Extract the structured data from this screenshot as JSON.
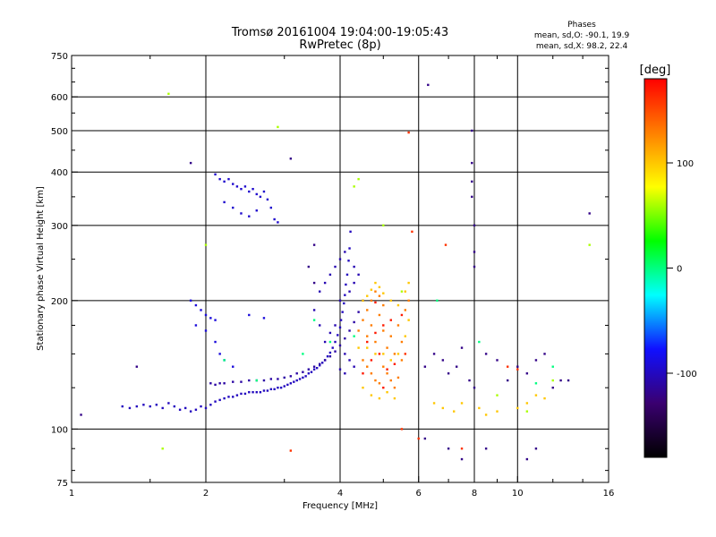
{
  "chart_data": {
    "type": "scatter",
    "title": "Tromsø 20161004 19:04:00-19:05:43",
    "subtitle": "RwPretec (8p)",
    "stats": {
      "heading": "Phases",
      "line_o": "mean, sd,O: -90.1, 19.9",
      "line_x": "mean, sd,X: 98.2, 22.4"
    },
    "xlabel": "Frequency [MHz]",
    "ylabel": "Stationary phase Virtual Height [km]",
    "x_scale": "log",
    "y_scale": "log",
    "xlim": [
      1,
      16
    ],
    "ylim": [
      75,
      750
    ],
    "x_ticks": [
      1,
      2,
      4,
      6,
      8,
      10,
      16
    ],
    "x_tick_labels": [
      "1",
      "2",
      "4",
      "6",
      "8",
      "10",
      "16"
    ],
    "y_ticks": [
      75,
      100,
      200,
      300,
      400,
      500,
      600,
      750
    ],
    "y_tick_labels": [
      "75",
      "100",
      "200",
      "300",
      "400",
      "500",
      "600",
      "750"
    ],
    "x_minor_ticks": [
      1.5,
      3,
      5,
      7,
      9,
      12,
      14
    ],
    "y_minor_ticks": [
      80,
      90,
      125,
      150,
      175,
      250,
      350,
      450,
      550,
      650,
      700
    ],
    "grid": true,
    "colorbar": {
      "label": "[deg]",
      "range": [
        -180,
        180
      ],
      "ticks": [
        100,
        0,
        -100
      ],
      "tick_labels": [
        "100",
        "0",
        "-100"
      ],
      "colors": [
        "#000000",
        "#3a0070",
        "#1010ff",
        "#00ffff",
        "#00ff00",
        "#ffff00",
        "#ff8000",
        "#ff0000"
      ]
    },
    "series": [
      {
        "phase": -100,
        "points": [
          [
            1.3,
            113
          ],
          [
            1.35,
            112
          ],
          [
            1.4,
            113
          ],
          [
            1.45,
            114
          ],
          [
            1.5,
            113
          ],
          [
            1.55,
            114
          ],
          [
            1.6,
            112
          ],
          [
            1.65,
            115
          ],
          [
            1.7,
            113
          ],
          [
            1.75,
            111
          ],
          [
            1.8,
            112
          ],
          [
            1.85,
            110
          ],
          [
            1.9,
            111
          ],
          [
            1.95,
            113
          ],
          [
            2.0,
            112
          ],
          [
            2.05,
            114
          ],
          [
            2.1,
            116
          ],
          [
            2.15,
            117
          ],
          [
            2.2,
            118
          ],
          [
            2.25,
            119
          ],
          [
            2.3,
            119
          ],
          [
            2.35,
            120
          ],
          [
            2.4,
            121
          ],
          [
            2.45,
            121
          ],
          [
            2.5,
            122
          ],
          [
            2.55,
            122
          ],
          [
            2.6,
            122
          ],
          [
            2.65,
            122
          ],
          [
            2.7,
            123
          ],
          [
            2.75,
            123
          ],
          [
            2.8,
            124
          ],
          [
            2.85,
            124
          ],
          [
            2.9,
            125
          ],
          [
            2.95,
            125
          ],
          [
            3.0,
            126
          ],
          [
            3.05,
            127
          ],
          [
            3.1,
            128
          ],
          [
            3.15,
            129
          ],
          [
            3.2,
            130
          ],
          [
            3.25,
            131
          ],
          [
            3.3,
            132
          ],
          [
            3.35,
            133
          ],
          [
            3.4,
            135
          ],
          [
            3.45,
            136
          ],
          [
            3.5,
            138
          ],
          [
            3.55,
            139
          ],
          [
            3.6,
            141
          ],
          [
            3.65,
            143
          ],
          [
            3.7,
            145
          ],
          [
            3.75,
            148
          ],
          [
            3.8,
            151
          ],
          [
            3.85,
            155
          ],
          [
            3.9,
            160
          ],
          [
            3.95,
            166
          ],
          [
            4.0,
            173
          ],
          [
            4.02,
            180
          ],
          [
            4.05,
            188
          ],
          [
            4.08,
            197
          ],
          [
            4.1,
            206
          ],
          [
            4.12,
            218
          ],
          [
            4.15,
            230
          ],
          [
            4.18,
            248
          ],
          [
            4.2,
            265
          ],
          [
            4.22,
            290
          ]
        ]
      },
      {
        "phase": -110,
        "points": [
          [
            2.05,
            128
          ],
          [
            2.1,
            127
          ],
          [
            2.15,
            128
          ],
          [
            2.2,
            128
          ],
          [
            2.3,
            129
          ],
          [
            2.4,
            129
          ],
          [
            2.5,
            130
          ],
          [
            2.6,
            130
          ],
          [
            2.7,
            130
          ],
          [
            2.8,
            131
          ],
          [
            2.9,
            131
          ],
          [
            3.0,
            132
          ],
          [
            3.1,
            133
          ],
          [
            3.2,
            135
          ],
          [
            3.3,
            136
          ],
          [
            3.4,
            138
          ],
          [
            3.5,
            140
          ],
          [
            3.6,
            142
          ],
          [
            3.7,
            145
          ],
          [
            3.8,
            148
          ],
          [
            3.9,
            152
          ],
          [
            4.0,
            157
          ],
          [
            4.1,
            163
          ],
          [
            4.2,
            170
          ],
          [
            4.3,
            178
          ],
          [
            4.4,
            188
          ],
          [
            4.5,
            200
          ]
        ]
      },
      {
        "phase": -95,
        "points": [
          [
            2.1,
            395
          ],
          [
            2.15,
            385
          ],
          [
            2.2,
            380
          ],
          [
            2.25,
            385
          ],
          [
            2.3,
            375
          ],
          [
            2.35,
            370
          ],
          [
            2.4,
            365
          ],
          [
            2.45,
            370
          ],
          [
            2.5,
            360
          ],
          [
            2.55,
            365
          ],
          [
            2.6,
            355
          ],
          [
            2.65,
            350
          ],
          [
            2.7,
            360
          ],
          [
            2.75,
            345
          ],
          [
            2.8,
            330
          ],
          [
            2.2,
            340
          ],
          [
            2.3,
            330
          ],
          [
            2.4,
            320
          ],
          [
            2.5,
            315
          ],
          [
            2.6,
            325
          ],
          [
            2.85,
            310
          ],
          [
            2.9,
            305
          ]
        ]
      },
      {
        "phase": -90,
        "points": [
          [
            1.85,
            200
          ],
          [
            1.9,
            195
          ],
          [
            1.95,
            190
          ],
          [
            2.0,
            185
          ],
          [
            2.05,
            182
          ],
          [
            2.1,
            180
          ],
          [
            1.9,
            175
          ],
          [
            2.0,
            170
          ],
          [
            2.1,
            160
          ],
          [
            2.15,
            150
          ],
          [
            2.2,
            145
          ],
          [
            2.3,
            140
          ],
          [
            2.5,
            185
          ],
          [
            2.7,
            182
          ]
        ]
      },
      {
        "phase": -105,
        "points": [
          [
            3.6,
            210
          ],
          [
            3.7,
            220
          ],
          [
            3.8,
            230
          ],
          [
            3.9,
            240
          ],
          [
            4.0,
            250
          ],
          [
            4.1,
            260
          ],
          [
            3.5,
            190
          ],
          [
            3.6,
            175
          ],
          [
            3.7,
            160
          ],
          [
            3.8,
            168
          ],
          [
            3.9,
            175
          ],
          [
            4.0,
            200
          ],
          [
            4.2,
            210
          ],
          [
            4.3,
            220
          ],
          [
            4.3,
            240
          ],
          [
            4.4,
            230
          ],
          [
            4.1,
            150
          ],
          [
            4.2,
            145
          ],
          [
            4.3,
            140
          ],
          [
            4.0,
            138
          ],
          [
            4.1,
            135
          ]
        ]
      },
      {
        "phase": 130,
        "points": [
          [
            4.4,
            170
          ],
          [
            4.5,
            180
          ],
          [
            4.6,
            165
          ],
          [
            4.7,
            175
          ],
          [
            4.8,
            160
          ],
          [
            4.9,
            185
          ],
          [
            5.0,
            170
          ],
          [
            5.1,
            155
          ],
          [
            5.2,
            165
          ],
          [
            5.3,
            150
          ],
          [
            5.4,
            175
          ],
          [
            5.5,
            160
          ],
          [
            4.5,
            145
          ],
          [
            4.6,
            140
          ],
          [
            4.7,
            135
          ],
          [
            4.8,
            130
          ],
          [
            4.9,
            128
          ],
          [
            5.0,
            140
          ],
          [
            5.1,
            135
          ],
          [
            5.2,
            130
          ],
          [
            5.3,
            125
          ],
          [
            5.4,
            132
          ],
          [
            5.5,
            145
          ],
          [
            5.6,
            190
          ],
          [
            5.7,
            200
          ],
          [
            4.6,
            190
          ],
          [
            4.7,
            200
          ],
          [
            4.8,
            210
          ],
          [
            4.9,
            205
          ],
          [
            5.0,
            195
          ]
        ]
      },
      {
        "phase": 100,
        "points": [
          [
            4.5,
            200
          ],
          [
            4.6,
            205
          ],
          [
            4.7,
            212
          ],
          [
            4.8,
            220
          ],
          [
            4.9,
            215
          ],
          [
            5.0,
            208
          ],
          [
            5.2,
            200
          ],
          [
            5.4,
            195
          ],
          [
            5.6,
            210
          ],
          [
            5.7,
            220
          ],
          [
            4.4,
            155
          ],
          [
            4.6,
            155
          ],
          [
            4.8,
            150
          ],
          [
            5.0,
            150
          ],
          [
            5.2,
            145
          ],
          [
            5.4,
            150
          ],
          [
            5.6,
            165
          ],
          [
            5.7,
            180
          ],
          [
            4.5,
            125
          ],
          [
            4.7,
            120
          ],
          [
            4.9,
            118
          ],
          [
            5.1,
            122
          ],
          [
            5.3,
            118
          ],
          [
            6.5,
            115
          ],
          [
            6.8,
            112
          ],
          [
            7.2,
            110
          ],
          [
            7.5,
            115
          ],
          [
            8.2,
            112
          ],
          [
            8.5,
            108
          ],
          [
            9.0,
            110
          ],
          [
            10.0,
            112
          ],
          [
            10.5,
            115
          ],
          [
            11.0,
            120
          ],
          [
            11.5,
            118
          ]
        ]
      },
      {
        "phase": 170,
        "points": [
          [
            4.6,
            160
          ],
          [
            4.8,
            168
          ],
          [
            5.0,
            175
          ],
          [
            5.2,
            180
          ],
          [
            4.7,
            145
          ],
          [
            4.9,
            150
          ],
          [
            5.1,
            138
          ],
          [
            5.3,
            142
          ],
          [
            4.5,
            135
          ],
          [
            5.5,
            185
          ],
          [
            4.8,
            198
          ],
          [
            5.0,
            125
          ]
        ]
      },
      {
        "phase": -120,
        "points": [
          [
            6.2,
            140
          ],
          [
            6.5,
            150
          ],
          [
            6.8,
            145
          ],
          [
            7.0,
            135
          ],
          [
            7.3,
            140
          ],
          [
            7.5,
            155
          ],
          [
            7.8,
            130
          ],
          [
            8.0,
            125
          ],
          [
            8.5,
            150
          ],
          [
            9.0,
            145
          ],
          [
            9.5,
            130
          ],
          [
            10.0,
            140
          ],
          [
            10.5,
            135
          ],
          [
            11.0,
            145
          ],
          [
            11.5,
            150
          ],
          [
            12.0,
            125
          ],
          [
            12.5,
            130
          ],
          [
            13.0,
            130
          ],
          [
            7.9,
            500
          ],
          [
            7.9,
            420
          ],
          [
            7.9,
            380
          ],
          [
            7.9,
            350
          ],
          [
            8.0,
            300
          ],
          [
            8.0,
            260
          ],
          [
            8.0,
            240
          ],
          [
            6.3,
            640
          ],
          [
            6.2,
            95
          ],
          [
            7.0,
            90
          ],
          [
            7.5,
            85
          ],
          [
            8.5,
            90
          ],
          [
            10.5,
            85
          ],
          [
            11.0,
            90
          ],
          [
            1.4,
            140
          ],
          [
            1.05,
            108
          ],
          [
            1.85,
            420
          ],
          [
            14.5,
            320
          ],
          [
            3.4,
            240
          ],
          [
            3.5,
            270
          ],
          [
            3.1,
            430
          ],
          [
            3.5,
            220
          ]
        ]
      },
      {
        "phase": 0,
        "points": [
          [
            2.2,
            145
          ],
          [
            2.6,
            130
          ],
          [
            3.3,
            150
          ],
          [
            3.8,
            160
          ],
          [
            4.3,
            165
          ],
          [
            6.6,
            200
          ],
          [
            8.2,
            160
          ],
          [
            11.0,
            128
          ],
          [
            12.0,
            140
          ],
          [
            3.5,
            180
          ]
        ]
      },
      {
        "phase": 60,
        "points": [
          [
            1.65,
            610
          ],
          [
            2.9,
            510
          ],
          [
            4.4,
            385
          ],
          [
            4.3,
            370
          ],
          [
            5.5,
            210
          ],
          [
            5.0,
            300
          ],
          [
            14.5,
            270
          ],
          [
            1.6,
            90
          ],
          [
            2.0,
            270
          ],
          [
            9.0,
            120
          ],
          [
            10.5,
            110
          ],
          [
            12.0,
            130
          ]
        ]
      },
      {
        "phase": 160,
        "points": [
          [
            5.6,
            150
          ],
          [
            5.8,
            290
          ],
          [
            6.9,
            270
          ],
          [
            7.5,
            90
          ],
          [
            9.5,
            140
          ],
          [
            10.0,
            138
          ],
          [
            5.5,
            100
          ],
          [
            6.0,
            95
          ],
          [
            3.1,
            89
          ],
          [
            5.7,
            495
          ]
        ]
      }
    ]
  }
}
